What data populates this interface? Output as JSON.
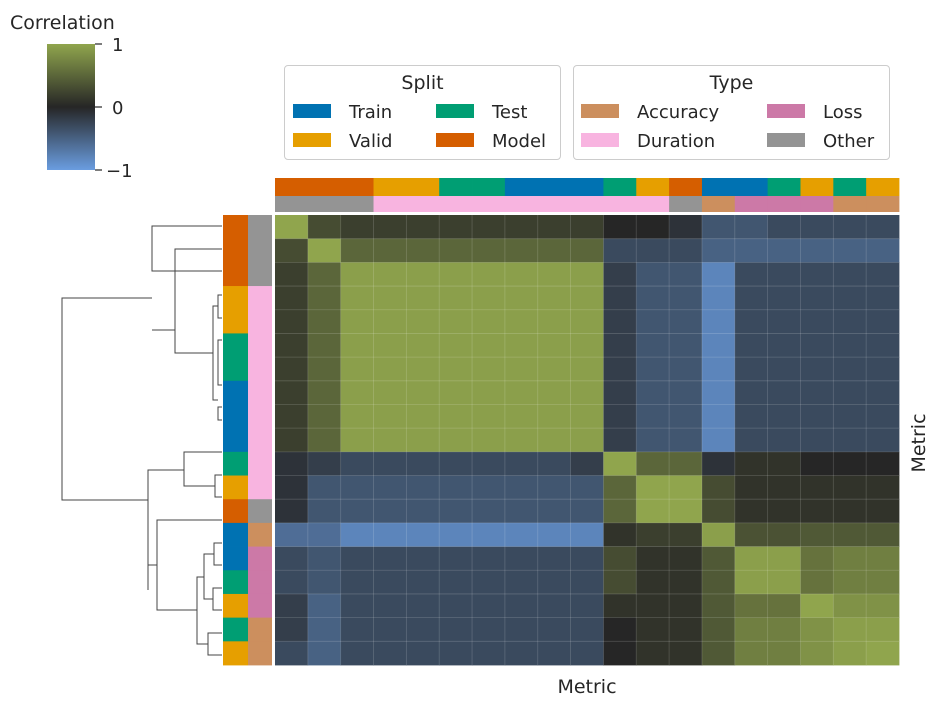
{
  "chart_data": {
    "type": "heatmap",
    "title": "",
    "xlabel": "Metric",
    "ylabel": "Metric",
    "colorbar": {
      "label": "Correlation",
      "ticks": [
        1,
        0,
        -1
      ],
      "tick_labels": [
        "1",
        "0",
        "−1"
      ],
      "vmin": -1,
      "vmax": 1
    },
    "legends": [
      {
        "title": "Split",
        "entries": [
          {
            "label": "Train",
            "color": "#0072b2"
          },
          {
            "label": "Test",
            "color": "#009e73"
          },
          {
            "label": "Valid",
            "color": "#e69f00"
          },
          {
            "label": "Model",
            "color": "#d55e00"
          }
        ]
      },
      {
        "title": "Type",
        "entries": [
          {
            "label": "Accuracy",
            "color": "#cc8f5e"
          },
          {
            "label": "Loss",
            "color": "#cc79a7"
          },
          {
            "label": "Duration",
            "color": "#f8b4e0"
          },
          {
            "label": "Other",
            "color": "#949494"
          }
        ]
      }
    ],
    "colors": {
      "low": "#6a9de0",
      "mid": "#262626",
      "high": "#90a54d",
      "Train": "#0072b2",
      "Test": "#009e73",
      "Valid": "#e69f00",
      "Model": "#d55e00",
      "Accuracy": "#cc8f5e",
      "Loss": "#cc79a7",
      "Duration": "#f8b4e0",
      "Other": "#949494"
    },
    "col_split": [
      "Model",
      "Model",
      "Model",
      "Valid",
      "Valid",
      "Test",
      "Test",
      "Train",
      "Train",
      "Train",
      "Test",
      "Valid",
      "Model",
      "Train",
      "Train",
      "Test",
      "Valid",
      "Test",
      "Valid"
    ],
    "col_type": [
      "Other",
      "Other",
      "Other",
      "Duration",
      "Duration",
      "Duration",
      "Duration",
      "Duration",
      "Duration",
      "Duration",
      "Duration",
      "Duration",
      "Other",
      "Accuracy",
      "Loss",
      "Loss",
      "Loss",
      "Accuracy",
      "Accuracy"
    ],
    "row_split": [
      "Model",
      "Model",
      "Model",
      "Valid",
      "Valid",
      "Test",
      "Test",
      "Train",
      "Train",
      "Train",
      "Test",
      "Valid",
      "Model",
      "Train",
      "Train",
      "Test",
      "Valid",
      "Test",
      "Valid"
    ],
    "row_type": [
      "Other",
      "Other",
      "Other",
      "Duration",
      "Duration",
      "Duration",
      "Duration",
      "Duration",
      "Duration",
      "Duration",
      "Duration",
      "Duration",
      "Other",
      "Accuracy",
      "Loss",
      "Loss",
      "Loss",
      "Accuracy",
      "Accuracy"
    ],
    "values": [
      [
        1.0,
        0.3,
        0.2,
        0.2,
        0.2,
        0.2,
        0.2,
        0.2,
        0.2,
        0.2,
        0.0,
        0.0,
        -0.1,
        -0.4,
        -0.4,
        -0.3,
        -0.3,
        -0.3,
        -0.3
      ],
      [
        0.3,
        1.0,
        0.5,
        0.5,
        0.5,
        0.5,
        0.5,
        0.5,
        0.5,
        0.5,
        -0.3,
        -0.3,
        -0.3,
        -0.5,
        -0.5,
        -0.5,
        -0.5,
        -0.5,
        -0.5
      ],
      [
        0.2,
        0.5,
        0.95,
        0.95,
        0.95,
        0.95,
        0.95,
        0.95,
        0.95,
        0.95,
        -0.2,
        -0.4,
        -0.4,
        -0.8,
        -0.3,
        -0.3,
        -0.3,
        -0.3,
        -0.3
      ],
      [
        0.2,
        0.5,
        0.95,
        0.95,
        0.95,
        0.95,
        0.95,
        0.95,
        0.95,
        0.95,
        -0.2,
        -0.4,
        -0.4,
        -0.8,
        -0.3,
        -0.3,
        -0.3,
        -0.3,
        -0.3
      ],
      [
        0.2,
        0.5,
        0.95,
        0.95,
        0.95,
        0.95,
        0.95,
        0.95,
        0.95,
        0.95,
        -0.2,
        -0.4,
        -0.4,
        -0.8,
        -0.3,
        -0.3,
        -0.3,
        -0.3,
        -0.3
      ],
      [
        0.2,
        0.5,
        0.95,
        0.95,
        0.95,
        0.95,
        0.95,
        0.95,
        0.95,
        0.95,
        -0.2,
        -0.4,
        -0.4,
        -0.8,
        -0.3,
        -0.3,
        -0.3,
        -0.3,
        -0.3
      ],
      [
        0.2,
        0.5,
        0.95,
        0.95,
        0.95,
        0.95,
        0.95,
        0.95,
        0.95,
        0.95,
        -0.2,
        -0.4,
        -0.4,
        -0.8,
        -0.3,
        -0.3,
        -0.3,
        -0.3,
        -0.3
      ],
      [
        0.2,
        0.5,
        0.95,
        0.95,
        0.95,
        0.95,
        0.95,
        0.95,
        0.95,
        0.95,
        -0.2,
        -0.4,
        -0.4,
        -0.8,
        -0.3,
        -0.3,
        -0.3,
        -0.3,
        -0.3
      ],
      [
        0.2,
        0.5,
        0.95,
        0.95,
        0.95,
        0.95,
        0.95,
        0.95,
        0.95,
        0.95,
        -0.2,
        -0.4,
        -0.4,
        -0.8,
        -0.3,
        -0.3,
        -0.3,
        -0.3,
        -0.3
      ],
      [
        0.2,
        0.5,
        0.95,
        0.95,
        0.95,
        0.95,
        0.95,
        0.95,
        0.95,
        0.95,
        -0.2,
        -0.4,
        -0.4,
        -0.8,
        -0.3,
        -0.3,
        -0.3,
        -0.3,
        -0.3
      ],
      [
        -0.1,
        -0.2,
        -0.3,
        -0.3,
        -0.3,
        -0.3,
        -0.3,
        -0.3,
        -0.3,
        -0.2,
        1.0,
        0.5,
        0.5,
        -0.1,
        0.1,
        0.1,
        0.0,
        0.0,
        0.0
      ],
      [
        -0.1,
        -0.4,
        -0.4,
        -0.4,
        -0.4,
        -0.4,
        -0.4,
        -0.4,
        -0.4,
        -0.4,
        0.5,
        1.0,
        1.0,
        0.3,
        0.1,
        0.1,
        0.1,
        0.1,
        0.1
      ],
      [
        -0.1,
        -0.4,
        -0.4,
        -0.4,
        -0.4,
        -0.4,
        -0.4,
        -0.4,
        -0.4,
        -0.4,
        0.5,
        1.0,
        1.0,
        0.3,
        0.1,
        0.1,
        0.1,
        0.1,
        0.1
      ],
      [
        -0.6,
        -0.6,
        -0.8,
        -0.8,
        -0.8,
        -0.8,
        -0.8,
        -0.8,
        -0.8,
        -0.8,
        0.1,
        0.2,
        0.2,
        0.95,
        0.35,
        0.35,
        0.4,
        0.4,
        0.4
      ],
      [
        -0.3,
        -0.4,
        -0.3,
        -0.3,
        -0.3,
        -0.3,
        -0.3,
        -0.3,
        -0.3,
        -0.3,
        0.3,
        0.1,
        0.1,
        0.4,
        0.95,
        0.95,
        0.6,
        0.7,
        0.7
      ],
      [
        -0.3,
        -0.4,
        -0.3,
        -0.3,
        -0.3,
        -0.3,
        -0.3,
        -0.3,
        -0.3,
        -0.3,
        0.3,
        0.1,
        0.1,
        0.4,
        0.95,
        0.95,
        0.6,
        0.7,
        0.7
      ],
      [
        -0.2,
        -0.5,
        -0.3,
        -0.3,
        -0.3,
        -0.3,
        -0.3,
        -0.3,
        -0.3,
        -0.3,
        0.1,
        0.1,
        0.1,
        0.4,
        0.6,
        0.6,
        1.0,
        0.85,
        0.85
      ],
      [
        -0.2,
        -0.5,
        -0.3,
        -0.3,
        -0.3,
        -0.3,
        -0.3,
        -0.3,
        -0.3,
        -0.3,
        0.0,
        0.1,
        0.1,
        0.4,
        0.7,
        0.7,
        0.85,
        0.95,
        0.95
      ],
      [
        -0.3,
        -0.5,
        -0.3,
        -0.3,
        -0.3,
        -0.3,
        -0.3,
        -0.3,
        -0.3,
        -0.3,
        0.0,
        0.1,
        0.1,
        0.4,
        0.7,
        0.7,
        0.85,
        0.95,
        1.0
      ]
    ]
  }
}
